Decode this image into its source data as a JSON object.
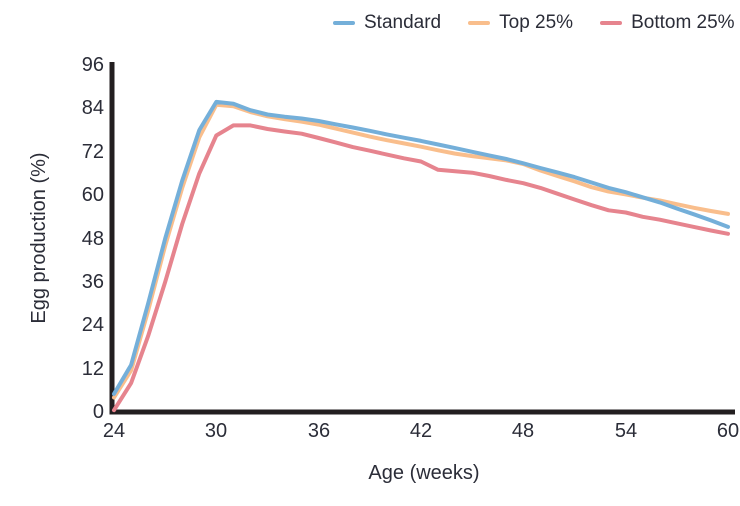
{
  "colors": {
    "axis": "#231F20",
    "text": "#2B2D38",
    "background": "#FFFFFF",
    "standard_line": "#74AFD9",
    "top25_line": "#F9BE8C",
    "bottom25_line": "#E6848E"
  },
  "chart_data": {
    "type": "line",
    "title": "",
    "xlabel": "Age (weeks)",
    "ylabel": "Egg production (%)",
    "xlim": [
      24,
      60
    ],
    "ylim": [
      0,
      96
    ],
    "xticks": [
      24,
      30,
      36,
      42,
      48,
      54,
      60
    ],
    "yticks": [
      0,
      12,
      24,
      36,
      48,
      60,
      72,
      84,
      96
    ],
    "grid": false,
    "legend_position": "top",
    "x": [
      24,
      25,
      26,
      27,
      28,
      29,
      30,
      31,
      32,
      33,
      34,
      35,
      36,
      37,
      38,
      39,
      40,
      41,
      42,
      43,
      44,
      45,
      46,
      47,
      48,
      49,
      50,
      51,
      52,
      53,
      54,
      55,
      56,
      57,
      58,
      59,
      60
    ],
    "series": [
      {
        "name": "Standard",
        "color": "#74AFD9",
        "values": [
          5,
          13,
          30,
          48,
          64,
          78,
          85.8,
          85.3,
          83.5,
          82.3,
          81.7,
          81.2,
          80.5,
          79.6,
          78.7,
          77.8,
          76.8,
          75.9,
          75,
          74,
          73,
          72,
          71,
          70,
          68.8,
          67.5,
          66.3,
          65,
          63.5,
          62,
          60.8,
          59.4,
          58,
          56.3,
          54.7,
          53,
          51.2
        ]
      },
      {
        "name": "Top 25%",
        "color": "#F9BE8C",
        "values": [
          4,
          11.5,
          28,
          46,
          62,
          76,
          85,
          84.6,
          83,
          81.8,
          81,
          80.3,
          79.5,
          78.4,
          77.3,
          76.2,
          75.2,
          74.3,
          73.4,
          72.4,
          71.5,
          70.8,
          70.2,
          69.6,
          68.6,
          66.8,
          65.3,
          63.8,
          62.2,
          61,
          60.2,
          59.3,
          58.5,
          57.5,
          56.5,
          55.6,
          54.8
        ]
      },
      {
        "name": "Bottom 25%",
        "color": "#E6848E",
        "values": [
          0.5,
          8,
          21,
          36,
          52,
          66,
          76.5,
          79.3,
          79.3,
          78.3,
          77.6,
          77,
          75.8,
          74.6,
          73.3,
          72.3,
          71.2,
          70.2,
          69.3,
          67,
          66.6,
          66.2,
          65.3,
          64.2,
          63.3,
          62,
          60.4,
          58.8,
          57.2,
          55.8,
          55.2,
          54,
          53.2,
          52.2,
          51.2,
          50.2,
          49.3
        ]
      }
    ]
  }
}
